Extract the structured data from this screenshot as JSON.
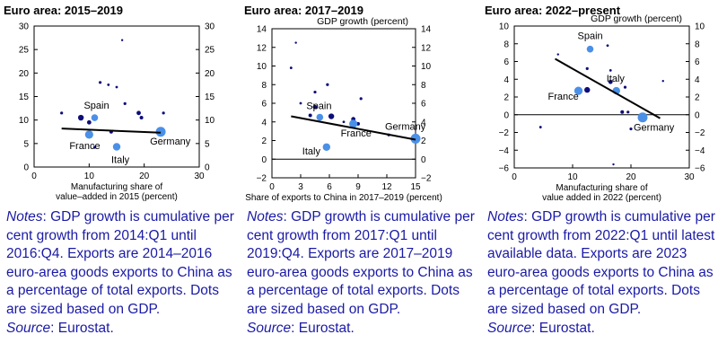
{
  "charts": [
    {
      "title": "Euro area: 2015–2019",
      "top_label": "",
      "xlabel_lines": [
        "Manufacturing share of",
        "value–added in 2015 (percent)"
      ],
      "notes_label": "Notes",
      "notes_text": ": GDP growth is cumulative per cent growth from 2014:Q1 until 2016:Q4. Exports are 2014–2016 euro-area goods exports to China as a percentage of total exports. Dots are sized based on GDP.",
      "source_label": "Source",
      "source_text": ": Eurostat."
    },
    {
      "title": "Euro area: 2017–2019",
      "top_label": "GDP growth (percent)",
      "xlabel_lines": [
        "Share of exports to China in 2017–2019 (percent)"
      ],
      "notes_label": "Notes",
      "notes_text": ": GDP growth is cumulative per cent growth from 2017:Q1 until 2019:Q4. Exports are 2017–2019 euro-area goods exports to China as a percentage of total exports. Dots are sized based on GDP.",
      "source_label": "Source",
      "source_text": ": Eurostat."
    },
    {
      "title": "Euro area: 2022–present",
      "top_label": "GDP growth (percent)",
      "xlabel_lines": [
        "Manufacturing share of",
        "value added in 2022 (percent)"
      ],
      "notes_label": "Notes",
      "notes_text": ": GDP growth is cumulative per cent growth from 2022:Q1 until latest available data. Exports are 2023 euro-area goods exports to China as a percentage of total exports. Dots are sized based on GDP.",
      "source_label": "Source",
      "source_text": ": Eurostat."
    }
  ],
  "colors": {
    "dark_dot": "#0d0d7a",
    "highlight_dot": "#4a90e8",
    "text": "#000000",
    "notes": "#1a1aa6"
  },
  "chart_data": [
    {
      "type": "scatter",
      "title": "Euro area: 2015–2019",
      "xlabel": "Manufacturing share of value–added in 2015 (percent)",
      "ylabel": "",
      "xlim": [
        0,
        30
      ],
      "ylim": [
        0,
        30
      ],
      "xticks": [
        0,
        10,
        20,
        30
      ],
      "yticks": [
        0,
        5,
        10,
        15,
        20,
        25,
        30
      ],
      "grid": false,
      "points": [
        {
          "x": 23,
          "y": 7.5,
          "label": "Germany",
          "highlight": true,
          "size": 5.5
        },
        {
          "x": 10,
          "y": 6.9,
          "label": "France",
          "highlight": true,
          "size": 4.6
        },
        {
          "x": 15,
          "y": 4.3,
          "label": "Italy",
          "highlight": true,
          "size": 4.2
        },
        {
          "x": 11,
          "y": 10.5,
          "label": "Spain",
          "highlight": true,
          "size": 3.8
        },
        {
          "x": 16,
          "y": 27,
          "size": 1.2
        },
        {
          "x": 12,
          "y": 18,
          "size": 1.6
        },
        {
          "x": 13.5,
          "y": 17.5,
          "size": 1.4
        },
        {
          "x": 15,
          "y": 17,
          "size": 1.4
        },
        {
          "x": 16.5,
          "y": 13.5,
          "size": 1.6
        },
        {
          "x": 19,
          "y": 11.5,
          "size": 2.4
        },
        {
          "x": 19.5,
          "y": 10.5,
          "size": 2.0
        },
        {
          "x": 23.5,
          "y": 11.5,
          "size": 1.6
        },
        {
          "x": 5,
          "y": 11.5,
          "size": 1.6
        },
        {
          "x": 8.5,
          "y": 10.5,
          "size": 3.2
        },
        {
          "x": 10,
          "y": 9.5,
          "size": 2.4
        },
        {
          "x": 14,
          "y": 7.5,
          "size": 2.0
        },
        {
          "x": 11,
          "y": 4.2,
          "size": 1.6
        }
      ],
      "trendline": {
        "x": [
          5,
          23
        ],
        "y": [
          8.2,
          7.3
        ]
      },
      "annotations": [
        "Spain",
        "France",
        "Italy",
        "Germany"
      ]
    },
    {
      "type": "scatter",
      "title": "Euro area: 2017–2019",
      "xlabel": "Share of exports to China in 2017–2019 (percent)",
      "ylabel": "GDP growth (percent)",
      "xlim": [
        0,
        15
      ],
      "ylim": [
        -2,
        14
      ],
      "xticks": [
        0,
        3,
        6,
        9,
        12,
        15
      ],
      "yticks": [
        -2,
        0,
        2,
        4,
        6,
        8,
        10,
        12,
        14
      ],
      "grid": false,
      "points": [
        {
          "x": 15,
          "y": 2.2,
          "label": "Germany",
          "highlight": true,
          "size": 5.5
        },
        {
          "x": 8.5,
          "y": 3.8,
          "label": "France",
          "highlight": true,
          "size": 4.6
        },
        {
          "x": 5.7,
          "y": 1.3,
          "label": "Italy",
          "highlight": true,
          "size": 4.2
        },
        {
          "x": 5,
          "y": 4.5,
          "label": "Spain",
          "highlight": true,
          "size": 3.8
        },
        {
          "x": 2.5,
          "y": 12.5,
          "size": 1.2
        },
        {
          "x": 2,
          "y": 9.8,
          "size": 1.4
        },
        {
          "x": 5.8,
          "y": 8,
          "size": 1.6
        },
        {
          "x": 4.5,
          "y": 7.2,
          "size": 1.6
        },
        {
          "x": 9.3,
          "y": 6.5,
          "size": 1.6
        },
        {
          "x": 4.5,
          "y": 5.6,
          "size": 2.4
        },
        {
          "x": 6.2,
          "y": 4.6,
          "size": 3.2
        },
        {
          "x": 4,
          "y": 4.7,
          "size": 2.0
        },
        {
          "x": 5,
          "y": 4.3,
          "size": 1.6
        },
        {
          "x": 8.5,
          "y": 4.3,
          "size": 2.4
        },
        {
          "x": 7.5,
          "y": 4.0,
          "size": 1.4
        },
        {
          "x": 9,
          "y": 3.8,
          "size": 2.0
        },
        {
          "x": 12.2,
          "y": 2.6,
          "size": 1.6
        },
        {
          "x": 3,
          "y": 6.0,
          "size": 1.4
        }
      ],
      "trendline": {
        "x": [
          2,
          15
        ],
        "y": [
          4.6,
          2.1
        ]
      },
      "annotations": [
        "Spain",
        "France",
        "Italy",
        "Germany"
      ]
    },
    {
      "type": "scatter",
      "title": "Euro area: 2022–present",
      "xlabel": "Manufacturing share of value added in 2022 (percent)",
      "ylabel": "GDP growth (percent)",
      "xlim": [
        0,
        30
      ],
      "ylim": [
        -6,
        10
      ],
      "xticks": [
        0,
        10,
        20,
        30
      ],
      "yticks": [
        -6,
        -4,
        -2,
        0,
        2,
        4,
        6,
        8,
        10
      ],
      "grid": false,
      "points": [
        {
          "x": 22,
          "y": -0.3,
          "label": "Germany",
          "highlight": true,
          "size": 5.5
        },
        {
          "x": 11,
          "y": 2.7,
          "label": "France",
          "highlight": true,
          "size": 4.6
        },
        {
          "x": 17.5,
          "y": 2.7,
          "label": "Italy",
          "highlight": true,
          "size": 4.2
        },
        {
          "x": 13,
          "y": 7.4,
          "label": "Spain",
          "highlight": true,
          "size": 3.8
        },
        {
          "x": 16,
          "y": 7.8,
          "size": 1.4
        },
        {
          "x": 7.5,
          "y": 6.8,
          "size": 1.2
        },
        {
          "x": 16.5,
          "y": 5.0,
          "size": 1.4
        },
        {
          "x": 12.5,
          "y": 5.2,
          "size": 1.6
        },
        {
          "x": 16.5,
          "y": 3.7,
          "size": 2.4
        },
        {
          "x": 12.5,
          "y": 2.8,
          "size": 3.2
        },
        {
          "x": 19,
          "y": 3.1,
          "size": 1.6
        },
        {
          "x": 25.5,
          "y": 3.8,
          "size": 1.2
        },
        {
          "x": 18.5,
          "y": 0.3,
          "size": 2.0
        },
        {
          "x": 19.5,
          "y": 0.3,
          "size": 1.6
        },
        {
          "x": 4.5,
          "y": -1.4,
          "size": 1.4
        },
        {
          "x": 20,
          "y": -1.6,
          "size": 1.6
        },
        {
          "x": 17,
          "y": -5.6,
          "size": 1.2
        }
      ],
      "trendline": {
        "x": [
          7,
          25
        ],
        "y": [
          6.3,
          -0.4
        ]
      },
      "annotations": [
        "Spain",
        "France",
        "Italy",
        "Germany"
      ]
    }
  ]
}
